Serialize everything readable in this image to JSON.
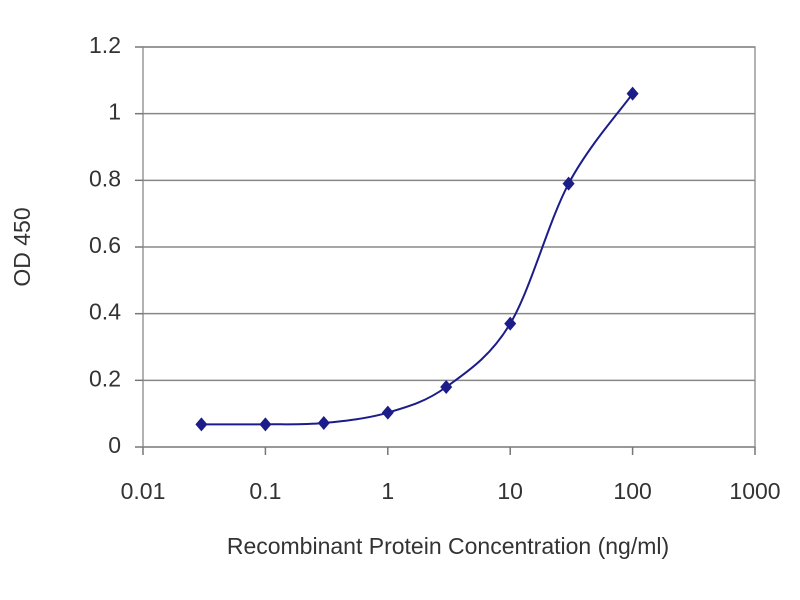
{
  "chart_data": {
    "type": "line",
    "x_label": "Recombinant Protein Concentration (ng/ml)",
    "y_label": "OD 450",
    "x": [
      0.03,
      0.1,
      0.3,
      1,
      3,
      10,
      30,
      100
    ],
    "values": [
      0.068,
      0.068,
      0.072,
      0.103,
      0.18,
      0.37,
      0.79,
      1.06
    ],
    "color": "#1c1c8a",
    "xscale": "log",
    "xlim": [
      0.01,
      1000
    ],
    "xticks": [
      0.01,
      0.1,
      1,
      10,
      100,
      1000
    ],
    "ylim": [
      0,
      1.2
    ],
    "yticks": [
      0,
      0.2,
      0.4,
      0.6,
      0.8,
      1,
      1.2
    ],
    "grid": true
  }
}
